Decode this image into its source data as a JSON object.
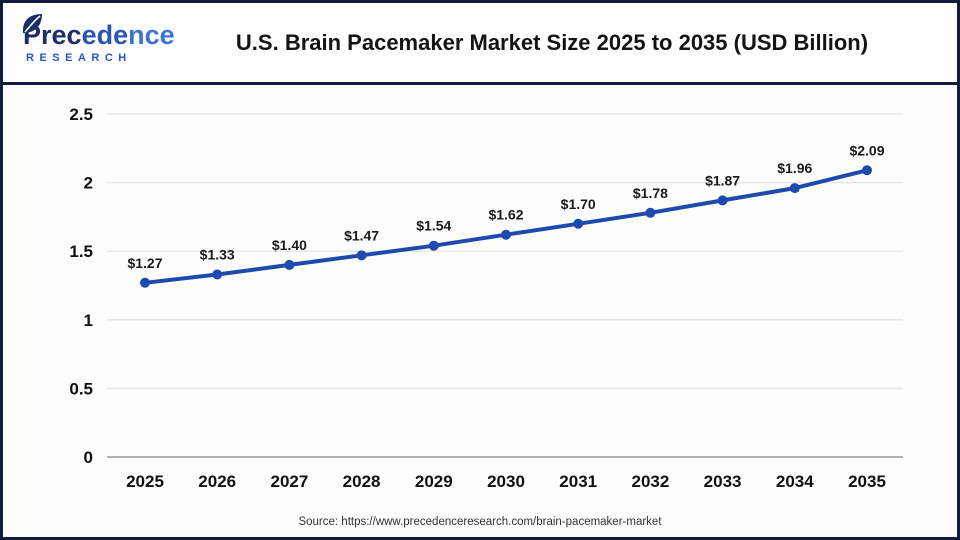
{
  "header": {
    "logo": {
      "brand_seg1": "Prec",
      "brand_seg2": "ede",
      "brand_seg3": "nce",
      "subtitle": "RESEARCH",
      "leaf_color": "#1c2d69"
    },
    "title": "U.S. Brain Pacemaker Market Size 2025 to 2035 (USD Billion)"
  },
  "chart_data": {
    "type": "line",
    "title": "U.S. Brain Pacemaker Market Size 2025 to 2035 (USD Billion)",
    "categories": [
      "2025",
      "2026",
      "2027",
      "2028",
      "2029",
      "2030",
      "2031",
      "2032",
      "2033",
      "2034",
      "2035"
    ],
    "values": [
      1.27,
      1.33,
      1.4,
      1.47,
      1.54,
      1.62,
      1.7,
      1.78,
      1.87,
      1.96,
      2.09
    ],
    "point_labels": [
      "$1.27",
      "$1.33",
      "$1.40",
      "$1.47",
      "$1.54",
      "$1.62",
      "$1.70",
      "$1.78",
      "$1.87",
      "$1.96",
      "$2.09"
    ],
    "xlabel": "",
    "ylabel": "",
    "ylim": [
      0,
      2.5
    ],
    "yticks": [
      "0",
      "0.5",
      "1",
      "1.5",
      "2",
      "2.5"
    ],
    "grid": true,
    "legend": "none",
    "line_color": "#1e49ae",
    "marker_color": "#1e49ae"
  },
  "footer": {
    "source": "Source: https://www.precedenceresearch.com/brain-pacemaker-market"
  }
}
